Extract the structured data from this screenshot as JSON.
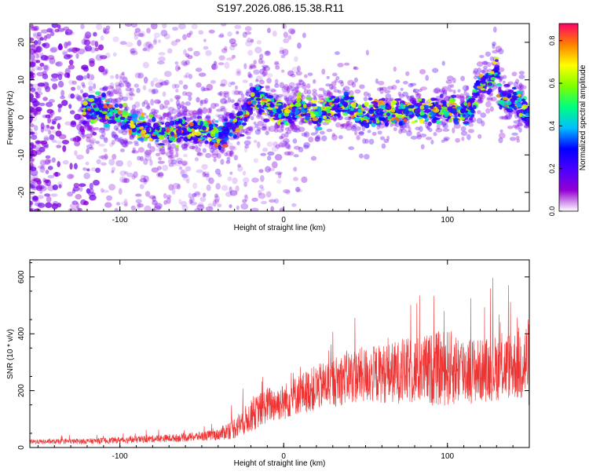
{
  "title": "S197.2026.086.15.38.R11",
  "chart_data": [
    {
      "type": "heatmap",
      "name": "spectrogram",
      "xlabel": "Height of straight line (km)",
      "ylabel": "Frequency (Hz)",
      "xlim": [
        -155,
        150
      ],
      "ylim": [
        -25,
        25
      ],
      "xticks": [
        -100,
        0,
        100
      ],
      "yticks": [
        -20,
        -10,
        0,
        10,
        20
      ],
      "ytick_labels": [
        "-20",
        "-10",
        "0",
        "10",
        "20"
      ],
      "xtick_labels": [
        "-100",
        "0",
        "100"
      ],
      "ridge_x": [
        -120,
        -110,
        -100,
        -90,
        -80,
        -70,
        -60,
        -50,
        -40,
        -30,
        -22,
        -18,
        -10,
        0,
        10,
        20,
        30,
        40,
        50,
        60,
        70,
        80,
        90,
        100,
        110,
        115,
        118,
        122,
        126,
        130,
        132,
        135,
        140,
        145,
        150
      ],
      "ridge_y": [
        2,
        2,
        0,
        -2,
        -4,
        -4,
        -3,
        -3,
        -5,
        -2,
        2,
        6,
        3,
        0,
        3,
        0,
        3,
        3,
        0,
        2,
        1,
        2,
        2,
        2,
        2,
        2,
        8,
        10,
        9,
        13,
        6,
        5,
        4,
        3,
        1
      ],
      "colorbar": {
        "label": "Normalized spectral amplitude",
        "range": [
          0.0,
          0.88
        ],
        "ticks": [
          0.0,
          0.2,
          0.4,
          0.6,
          0.8
        ],
        "tick_labels": [
          "0.0",
          "0.2",
          "0.4",
          "0.6",
          "0.8"
        ],
        "colors": [
          "#ffffff",
          "#9400d3",
          "#4b00ff",
          "#0000ff",
          "#00bfff",
          "#00ff7f",
          "#7fff00",
          "#ffff00",
          "#ff7f00",
          "#ff0066"
        ]
      }
    },
    {
      "type": "line",
      "name": "snr",
      "xlabel": "Height of straight line (km)",
      "ylabel": "SNR (10 * v/v)",
      "xlim": [
        -155,
        150
      ],
      "ylim": [
        0,
        660
      ],
      "xticks": [
        -100,
        0,
        100
      ],
      "xtick_labels": [
        "-100",
        "0",
        "100"
      ],
      "yticks": [
        0,
        200,
        400,
        600
      ],
      "ytick_labels": [
        "0",
        "200",
        "400",
        "600"
      ],
      "color": "#ee3333",
      "envelope_x": [
        -155,
        -120,
        -90,
        -60,
        -40,
        -30,
        -20,
        -10,
        0,
        10,
        20,
        30,
        40,
        60,
        80,
        100,
        120,
        140,
        150
      ],
      "envelope_mean": [
        20,
        22,
        28,
        35,
        45,
        70,
        110,
        150,
        160,
        190,
        210,
        230,
        250,
        260,
        270,
        280,
        270,
        290,
        300
      ],
      "envelope_spread": [
        10,
        12,
        15,
        18,
        25,
        50,
        70,
        80,
        80,
        90,
        100,
        110,
        120,
        130,
        150,
        170,
        140,
        150,
        200
      ]
    }
  ]
}
